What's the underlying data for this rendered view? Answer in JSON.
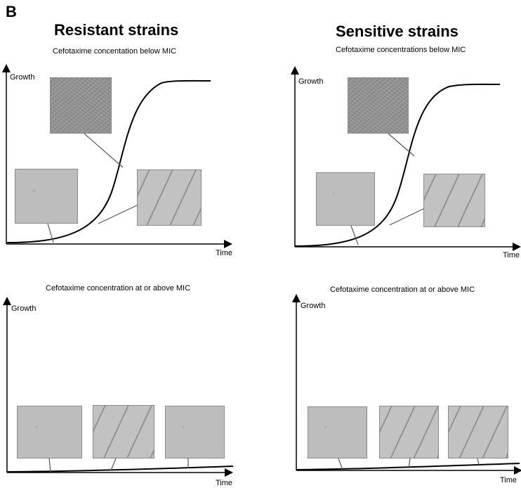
{
  "panel_label": "B",
  "columns": {
    "resistant": {
      "title": "Resistant strains",
      "top_subtitle": "Cefotaxime concentation below MIC",
      "bottom_subtitle": "Cefotaxime concentration at or above MIC"
    },
    "sensitive": {
      "title": "Sensitive strains",
      "top_subtitle": "Cefotaxime concentrations below MIC",
      "bottom_subtitle": "Cefotaxime concentration at or above MIC"
    }
  },
  "axes": {
    "y_label": "Growth",
    "x_label": "Time"
  },
  "micrographs": {
    "dense_colony": "dense-cell-lawn",
    "single_cells": "sparse-single-cells",
    "filaments": "filamentous-cells"
  },
  "colors": {
    "curve": "#000000",
    "axis": "#000000",
    "leader": "#555555"
  }
}
